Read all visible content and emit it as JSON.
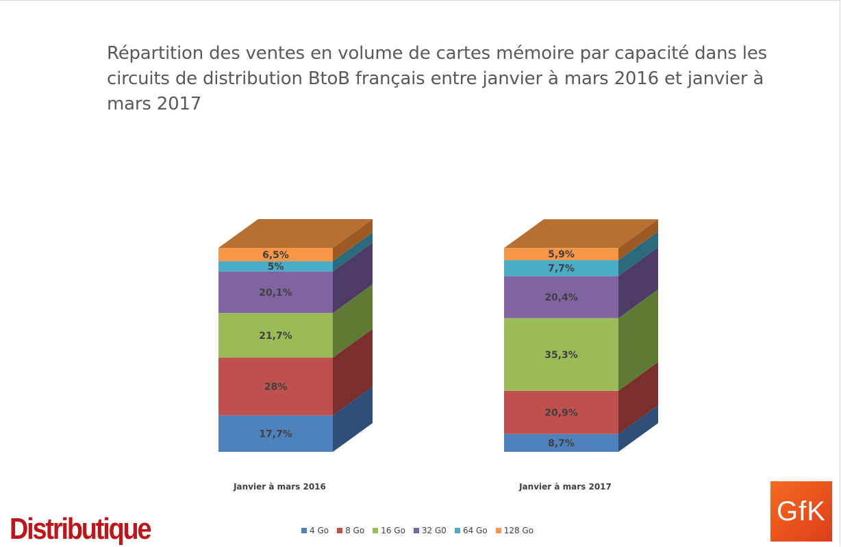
{
  "chart_data": {
    "type": "bar",
    "stacked": true,
    "style": "3d-stacked-column-100pct",
    "title": "Répartition des ventes en volume de cartes mémoire par capacité dans les circuits de distribution BtoB français entre janvier à mars 2016 et janvier à mars 2017",
    "categories": [
      "Janvier à mars 2016",
      "Janvier à mars 2017"
    ],
    "series": [
      {
        "name": "4 Go",
        "values": [
          17.7,
          8.7
        ],
        "labels": [
          "17,7%",
          "8,7%"
        ],
        "color": "#4f81bd",
        "side_color": "#2f4f78",
        "top_color": "#3d6699"
      },
      {
        "name": "8 Go",
        "values": [
          28,
          20.9
        ],
        "labels": [
          "28%",
          "20,9%"
        ],
        "color": "#c0504d",
        "side_color": "#7a2f2d",
        "top_color": "#9c3f3c"
      },
      {
        "name": "16 Go",
        "values": [
          21.7,
          35.3
        ],
        "labels": [
          "21,7%",
          "35,3%"
        ],
        "color": "#9bbb59",
        "side_color": "#5f7a34",
        "top_color": "#7c9a45"
      },
      {
        "name": "32 G0",
        "values": [
          20.1,
          20.4
        ],
        "labels": [
          "20,1%",
          "20,4%"
        ],
        "color": "#8064a2",
        "side_color": "#4d3b66",
        "top_color": "#654f82"
      },
      {
        "name": "64 Go",
        "values": [
          5,
          7.7
        ],
        "labels": [
          "5%",
          "7,7%"
        ],
        "color": "#4bacc6",
        "side_color": "#2a6a7c",
        "top_color": "#3a8aa0"
      },
      {
        "name": "128 Go",
        "values": [
          6.5,
          5.9
        ],
        "labels": [
          "6,5%",
          "5,9%"
        ],
        "color": "#f79646",
        "side_color": "#9c5a25",
        "top_color": "#b87032"
      }
    ],
    "ylim": [
      0,
      100
    ],
    "legend_position": "bottom",
    "grid": false
  },
  "logos": {
    "left_text": "Distributique",
    "right_text": "GfK"
  }
}
